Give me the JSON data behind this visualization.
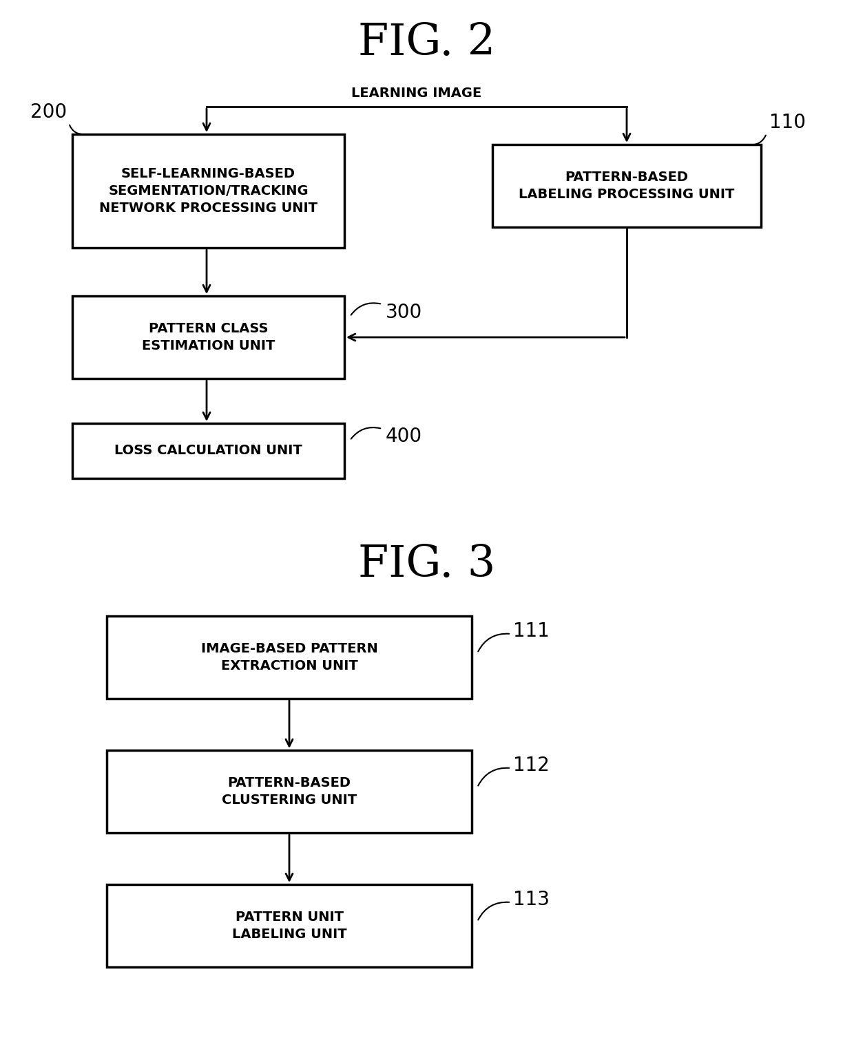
{
  "fig2_title": "FIG. 2",
  "fig3_title": "FIG. 3",
  "bg_color": "#ffffff",
  "box_edge_color": "#000000",
  "box_face_color": "#ffffff",
  "text_color": "#000000",
  "arrow_color": "#000000",
  "fig2": {
    "box200": {
      "label": "SELF-LEARNING-BASED\nSEGMENTATION/TRACKING\nNETWORK PROCESSING UNIT",
      "ref": "200"
    },
    "box110": {
      "label": "PATTERN-BASED\nLABELING PROCESSING UNIT",
      "ref": "110"
    },
    "box300": {
      "label": "PATTERN CLASS\nESTIMATION UNIT",
      "ref": "300"
    },
    "box400": {
      "label": "LOSS CALCULATION UNIT",
      "ref": "400"
    },
    "learning_image_label": "LEARNING IMAGE"
  },
  "fig3": {
    "box111": {
      "label": "IMAGE-BASED PATTERN\nEXTRACTION UNIT",
      "ref": "111"
    },
    "box112": {
      "label": "PATTERN-BASED\nCLUSTERING UNIT",
      "ref": "112"
    },
    "box113": {
      "label": "PATTERN UNIT\nLABELING UNIT",
      "ref": "113"
    }
  }
}
